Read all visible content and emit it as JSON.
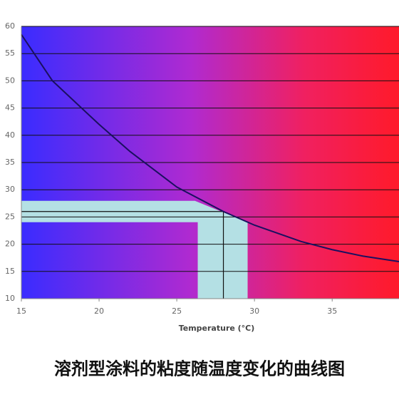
{
  "chart_data": {
    "type": "line",
    "title": "溶剂型涂料的粘度随温度变化的曲线图",
    "x_label": "Temperature (°C)",
    "x": [
      15,
      17,
      20,
      22,
      25,
      28,
      30,
      33,
      35,
      37,
      39.3
    ],
    "series": [
      {
        "color": "#1a1060",
        "values": [
          58.5,
          50,
          42,
          37,
          30.5,
          26,
          23.5,
          20.5,
          19,
          17.8,
          16.8
        ]
      }
    ],
    "marker": {
      "x": 28,
      "y": 26
    },
    "xlim": [
      15,
      39.3
    ],
    "ylim": [
      10,
      60
    ],
    "xticks": [
      15,
      20,
      25,
      30,
      35
    ],
    "yticks": [
      10,
      15,
      20,
      25,
      30,
      35,
      40,
      45,
      50,
      55,
      60
    ],
    "grid": true
  }
}
